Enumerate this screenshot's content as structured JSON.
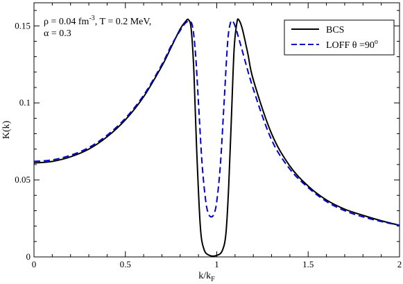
{
  "chart_data": {
    "type": "line",
    "title": "",
    "xlabel": "k/k",
    "xlabel_sub": "F",
    "ylabel": "K(k)",
    "xlim": [
      0,
      2
    ],
    "ylim": [
      0,
      0.165
    ],
    "xticks": [
      0,
      0.5,
      1,
      1.5,
      2
    ],
    "xtick_labels": [
      "0",
      "0.5",
      "1",
      "1.5",
      "2"
    ],
    "yticks": [
      0,
      0.05,
      0.1,
      0.15
    ],
    "ytick_labels": [
      "0",
      "0.05",
      "0.1",
      "0.15"
    ],
    "grid": false,
    "legend_position": "top-right",
    "annotations": {
      "line1_prefix": "ρ = 0.04 fm",
      "line1_sup": "-3",
      "line1_suffix": ", T = 0.2 MeV,",
      "line2": "α = 0.3"
    },
    "series": [
      {
        "name": "BCS",
        "color": "#000000",
        "dash": "solid",
        "x": [
          0,
          0.1,
          0.2,
          0.3,
          0.4,
          0.5,
          0.6,
          0.7,
          0.75,
          0.8,
          0.83,
          0.845,
          0.86,
          0.875,
          0.89,
          0.91,
          0.93,
          0.96,
          1.0,
          1.03,
          1.05,
          1.065,
          1.08,
          1.095,
          1.11,
          1.12,
          1.14,
          1.17,
          1.2,
          1.3,
          1.4,
          1.5,
          1.6,
          1.7,
          1.8,
          1.9,
          2.0
        ],
        "y": [
          0.061,
          0.062,
          0.065,
          0.07,
          0.078,
          0.089,
          0.104,
          0.124,
          0.136,
          0.148,
          0.153,
          0.154,
          0.148,
          0.12,
          0.07,
          0.02,
          0.005,
          0.001,
          0.001,
          0.004,
          0.015,
          0.045,
          0.09,
          0.135,
          0.152,
          0.154,
          0.148,
          0.132,
          0.115,
          0.08,
          0.059,
          0.046,
          0.037,
          0.031,
          0.027,
          0.0235,
          0.0205
        ]
      },
      {
        "name": "LOFF θ =90",
        "name_sup": "o",
        "color": "#0000cc",
        "dash": "dashed",
        "x": [
          0,
          0.1,
          0.2,
          0.3,
          0.4,
          0.5,
          0.6,
          0.7,
          0.75,
          0.8,
          0.83,
          0.855,
          0.87,
          0.885,
          0.9,
          0.92,
          0.94,
          0.955,
          0.97,
          0.985,
          1.0,
          1.02,
          1.04,
          1.06,
          1.075,
          1.085,
          1.1,
          1.13,
          1.2,
          1.3,
          1.4,
          1.5,
          1.6,
          1.7,
          1.8,
          1.9,
          2.0
        ],
        "y": [
          0.062,
          0.063,
          0.066,
          0.071,
          0.079,
          0.09,
          0.105,
          0.125,
          0.137,
          0.147,
          0.152,
          0.153,
          0.148,
          0.13,
          0.1,
          0.06,
          0.036,
          0.028,
          0.026,
          0.028,
          0.036,
          0.06,
          0.1,
          0.14,
          0.152,
          0.153,
          0.15,
          0.138,
          0.109,
          0.076,
          0.057,
          0.045,
          0.036,
          0.03,
          0.026,
          0.023,
          0.0205
        ]
      }
    ]
  }
}
